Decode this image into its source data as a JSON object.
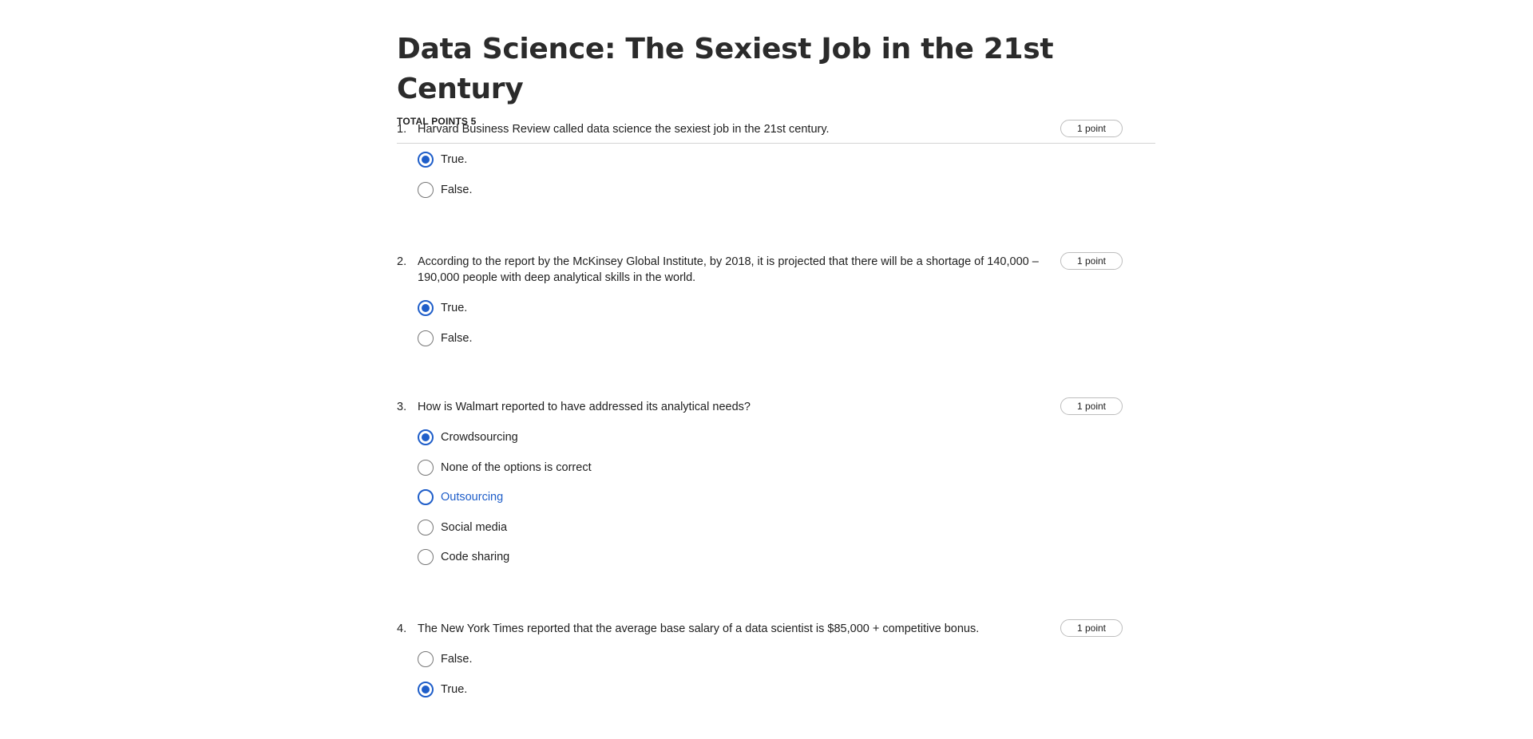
{
  "quiz": {
    "title": "Data Science: The Sexiest Job in the 21st Century",
    "total_points": "TOTAL POINTS 5"
  },
  "questions": [
    {
      "number": "1.",
      "text": "Harvard Business Review called data science the sexiest job in the 21st century.",
      "points": "1 point",
      "options": [
        {
          "label": "True.",
          "selected": true
        },
        {
          "label": "False.",
          "selected": false
        }
      ]
    },
    {
      "number": "2.",
      "text": "According to the report by the McKinsey Global Institute, by 2018, it is projected that there will be a shortage of 140,000 – 190,000 people with deep analytical skills in the world.",
      "points": "1 point",
      "options": [
        {
          "label": "True.",
          "selected": true
        },
        {
          "label": "False.",
          "selected": false
        }
      ]
    },
    {
      "number": "3.",
      "text": "How is Walmart reported to have addressed its analytical needs?",
      "points": "1 point",
      "options": [
        {
          "label": "Crowdsourcing",
          "selected": true
        },
        {
          "label": "None of the options is correct",
          "selected": false
        },
        {
          "label": "Outsourcing",
          "selected": false,
          "hovered": true
        },
        {
          "label": "Social media",
          "selected": false
        },
        {
          "label": "Code sharing",
          "selected": false
        }
      ]
    },
    {
      "number": "4.",
      "text": "The New York Times reported that the average base salary of a data scientist is $85,000 + competitive bonus.",
      "points": "1 point",
      "options": [
        {
          "label": "False.",
          "selected": false
        },
        {
          "label": "True.",
          "selected": true
        }
      ]
    }
  ],
  "colors": {
    "accent": "#1f5ec9",
    "text": "#1f1f1f",
    "divider": "#d4d4d4"
  }
}
